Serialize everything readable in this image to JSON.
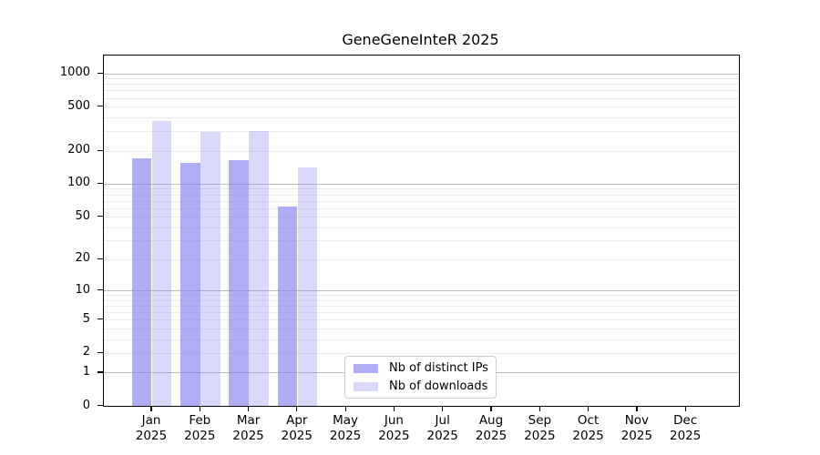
{
  "chart_data": {
    "type": "bar",
    "title": "GeneGeneInteR 2025",
    "xlabel": "",
    "ylabel": "",
    "x": {
      "categories": [
        "Jan",
        "Feb",
        "Mar",
        "Apr",
        "May",
        "Jun",
        "Jul",
        "Aug",
        "Sep",
        "Oct",
        "Nov",
        "Dec"
      ],
      "sub_label": "2025"
    },
    "y_axis": {
      "scale": "log1p",
      "tick_labels": [
        0,
        1,
        2,
        5,
        10,
        20,
        50,
        100,
        200,
        500,
        1000
      ],
      "top_value": 1447,
      "major_gridlines_at": [
        1,
        10,
        100,
        1000
      ],
      "grid": "on"
    },
    "series": [
      {
        "name": "Nb of distinct IPs",
        "color": "rgba(131,129,239,0.65)",
        "values": [
          170,
          155,
          165,
          62,
          null,
          null,
          null,
          null,
          null,
          null,
          null,
          null
        ]
      },
      {
        "name": "Nb of downloads",
        "color": "rgba(131,129,239,0.30)",
        "values": [
          370,
          293,
          298,
          140,
          null,
          null,
          null,
          null,
          null,
          null,
          null,
          null
        ]
      }
    ],
    "legend": {
      "position": "inside-bottom-center",
      "items": [
        "Nb of distinct IPs",
        "Nb of downloads"
      ]
    },
    "colors": {
      "major_grid": "#bdbdbd",
      "minor_grid": "#ececec",
      "axis": "#000000"
    }
  }
}
